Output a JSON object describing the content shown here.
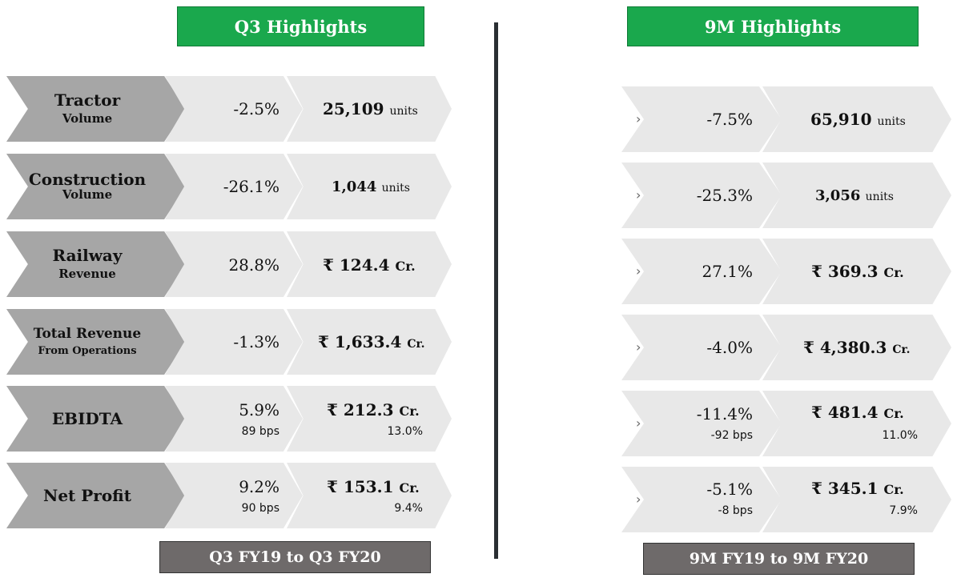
{
  "q3": {
    "title": "Q3 Highlights",
    "period": "Q3 FY19 to Q3 FY20",
    "rows": [
      {
        "label1": "Tractor",
        "label2": "Volume",
        "pct": "-2.5%",
        "sub": "",
        "value": "25,109",
        "unit": "units",
        "sub2": ""
      },
      {
        "label1": "Construction",
        "label2": "Volume",
        "pct": "-26.1%",
        "sub": "",
        "value": "1,044",
        "unit": "units",
        "sub2": ""
      },
      {
        "label1": "Railway",
        "label2": "Revenue",
        "pct": "28.8%",
        "sub": "",
        "value": "₹ 124.4",
        "unit": "Cr.",
        "sub2": ""
      },
      {
        "label1": "Total Revenue",
        "label2": "From Operations",
        "pct": "-1.3%",
        "sub": "",
        "value": "₹ 1,633.4",
        "unit": "Cr.",
        "sub2": ""
      },
      {
        "label1": "EBIDTA",
        "label2": "",
        "pct": "5.9%",
        "sub": "89 bps",
        "value": "₹ 212.3",
        "unit": "Cr.",
        "sub2": "13.0%"
      },
      {
        "label1": "Net Profit",
        "label2": "",
        "pct": "9.2%",
        "sub": "90 bps",
        "value": "₹ 153.1",
        "unit": "Cr.",
        "sub2": "9.4%"
      }
    ]
  },
  "nm": {
    "title": "9M Highlights",
    "period": "9M FY19 to 9M FY20",
    "marker": "›",
    "rows": [
      {
        "pct": "-7.5%",
        "sub": "",
        "value": "65,910",
        "unit": "units",
        "sub2": ""
      },
      {
        "pct": "-25.3%",
        "sub": "",
        "value": "3,056",
        "unit": "units",
        "sub2": ""
      },
      {
        "pct": "27.1%",
        "sub": "",
        "value": "₹ 369.3",
        "unit": "Cr.",
        "sub2": ""
      },
      {
        "pct": "-4.0%",
        "sub": "",
        "value": "₹ 4,380.3",
        "unit": "Cr.",
        "sub2": ""
      },
      {
        "pct": "-11.4%",
        "sub": "-92 bps",
        "value": "₹ 481.4",
        "unit": "Cr.",
        "sub2": "11.0%"
      },
      {
        "pct": "-5.1%",
        "sub": "-8 bps",
        "value": "₹ 345.1",
        "unit": "Cr.",
        "sub2": "7.9%"
      }
    ]
  }
}
